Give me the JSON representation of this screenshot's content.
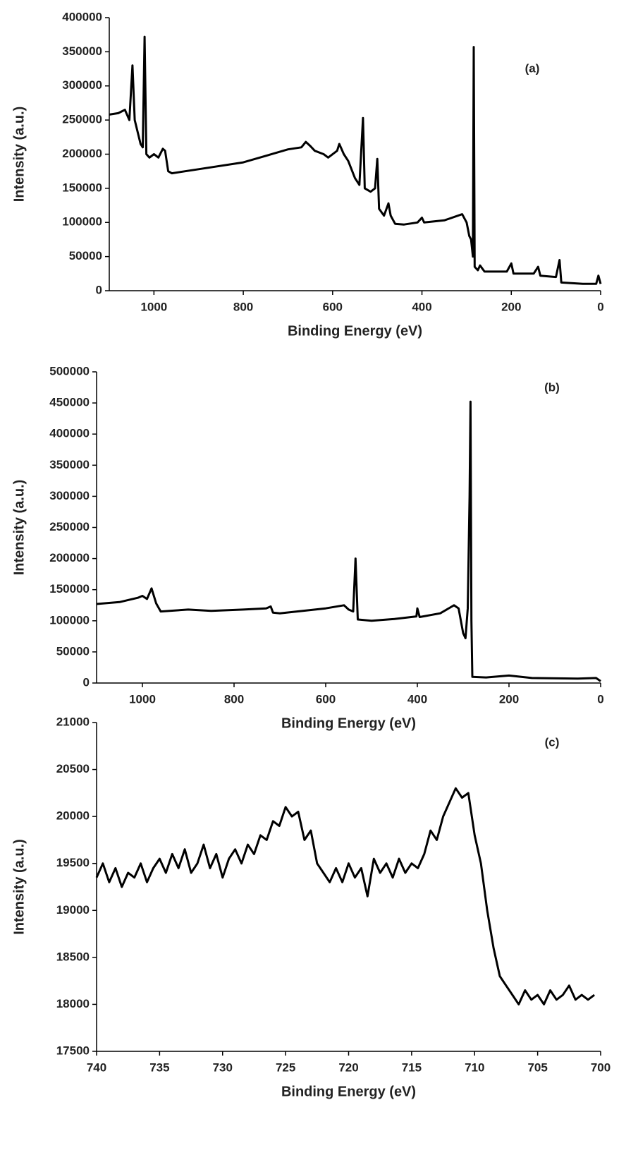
{
  "chart_data": [
    {
      "type": "line",
      "annotation": "(a)",
      "x_label": "Binding Energy (eV)",
      "y_label": "Intensity (a.u.)",
      "xlim": [
        1100,
        0
      ],
      "xticks": [
        1000,
        800,
        600,
        400,
        200,
        0
      ],
      "ylim": [
        0,
        400000
      ],
      "yticks": [
        0,
        50000,
        100000,
        150000,
        200000,
        250000,
        300000,
        350000,
        400000
      ],
      "grid": false,
      "series": [
        {
          "name": null,
          "color": "#000000",
          "x": [
            1100,
            1080,
            1065,
            1055,
            1048,
            1043,
            1030,
            1025,
            1021,
            1017,
            1010,
            1000,
            990,
            980,
            975,
            968,
            960,
            900,
            800,
            700,
            670,
            660,
            650,
            640,
            620,
            610,
            590,
            585,
            575,
            565,
            550,
            540,
            532,
            528,
            515,
            505,
            500,
            496,
            485,
            475,
            470,
            460,
            440,
            410,
            400,
            395,
            350,
            310,
            300,
            294,
            290,
            286,
            284,
            282,
            275,
            270,
            260,
            210,
            200,
            195,
            150,
            140,
            135,
            100,
            92,
            88,
            40,
            10,
            5,
            0
          ],
          "values": [
            258000,
            260000,
            265000,
            250000,
            330000,
            250000,
            215000,
            210000,
            372000,
            200000,
            195000,
            200000,
            195000,
            208000,
            205000,
            175000,
            172000,
            178000,
            188000,
            207000,
            210000,
            218000,
            212000,
            205000,
            200000,
            195000,
            205000,
            215000,
            200000,
            190000,
            165000,
            155000,
            253000,
            150000,
            145000,
            150000,
            193000,
            120000,
            110000,
            128000,
            110000,
            98000,
            97000,
            100000,
            107000,
            100000,
            103000,
            112000,
            100000,
            80000,
            75000,
            50000,
            357000,
            35000,
            30000,
            37000,
            28000,
            28000,
            40000,
            25000,
            25000,
            35000,
            22000,
            20000,
            45000,
            12000,
            10000,
            10000,
            22000,
            10000
          ]
        }
      ]
    },
    {
      "type": "line",
      "annotation": "(b)",
      "x_label": "Binding Energy (eV)",
      "y_label": "Intensity (a.u.)",
      "xlim": [
        1100,
        0
      ],
      "xticks": [
        1000,
        800,
        600,
        400,
        200,
        0
      ],
      "ylim": [
        0,
        500000
      ],
      "yticks": [
        0,
        50000,
        100000,
        150000,
        200000,
        250000,
        300000,
        350000,
        400000,
        450000,
        500000
      ],
      "grid": false,
      "series": [
        {
          "name": null,
          "color": "#000000",
          "x": [
            1100,
            1050,
            1010,
            1000,
            990,
            980,
            970,
            960,
            900,
            850,
            780,
            730,
            720,
            715,
            700,
            600,
            560,
            550,
            540,
            535,
            530,
            500,
            450,
            402,
            400,
            395,
            350,
            320,
            310,
            300,
            295,
            290,
            286,
            284,
            282,
            280,
            250,
            200,
            150,
            50,
            10,
            0
          ],
          "values": [
            127000,
            130000,
            137000,
            140000,
            135000,
            152000,
            128000,
            115000,
            118000,
            116000,
            118000,
            120000,
            123000,
            113000,
            112000,
            120000,
            125000,
            118000,
            115000,
            200000,
            102000,
            100000,
            103000,
            107000,
            120000,
            106000,
            112000,
            125000,
            120000,
            80000,
            72000,
            120000,
            300000,
            452000,
            100000,
            10000,
            9000,
            12000,
            8000,
            7000,
            8000,
            3000
          ]
        }
      ]
    },
    {
      "type": "line",
      "annotation": "(c)",
      "x_label": "Binding Energy (eV)",
      "y_label": "Intensity (a.u.)",
      "xlim": [
        740,
        700
      ],
      "xticks": [
        740,
        735,
        730,
        725,
        720,
        715,
        710,
        705,
        700
      ],
      "ylim": [
        17500,
        21000
      ],
      "yticks": [
        17500,
        18000,
        18500,
        19000,
        19500,
        20000,
        20500,
        21000
      ],
      "grid": false,
      "series": [
        {
          "name": null,
          "color": "#000000",
          "x": [
            740,
            739.5,
            739,
            738.5,
            738,
            737.5,
            737,
            736.5,
            736,
            735.5,
            735,
            734.5,
            734,
            733.5,
            733,
            732.5,
            732,
            731.5,
            731,
            730.5,
            730,
            729.5,
            729,
            728.5,
            728,
            727.5,
            727,
            726.5,
            726,
            725.5,
            725,
            724.5,
            724,
            723.5,
            723,
            722.5,
            722,
            721.5,
            721,
            720.5,
            720,
            719.5,
            719,
            718.5,
            718,
            717.5,
            717,
            716.5,
            716,
            715.5,
            715,
            714.5,
            714,
            713.5,
            713,
            712.5,
            712,
            711.5,
            711,
            710.5,
            710,
            709.5,
            709,
            708.5,
            708,
            707.5,
            707,
            706.5,
            706,
            705.5,
            705,
            704.5,
            704,
            703.5,
            703,
            702.5,
            702,
            701.5,
            701,
            700.5
          ],
          "values": [
            19350,
            19500,
            19300,
            19450,
            19250,
            19400,
            19350,
            19500,
            19300,
            19450,
            19550,
            19400,
            19600,
            19450,
            19650,
            19400,
            19500,
            19700,
            19450,
            19600,
            19350,
            19550,
            19650,
            19500,
            19700,
            19600,
            19800,
            19750,
            19950,
            19900,
            20100,
            20000,
            20050,
            19750,
            19850,
            19500,
            19400,
            19300,
            19450,
            19300,
            19500,
            19350,
            19450,
            19150,
            19550,
            19400,
            19500,
            19350,
            19550,
            19400,
            19500,
            19450,
            19600,
            19850,
            19750,
            20000,
            20150,
            20300,
            20200,
            20250,
            19800,
            19500,
            19000,
            18600,
            18300,
            18200,
            18100,
            18000,
            18150,
            18050,
            18100,
            18000,
            18150,
            18050,
            18100,
            18200,
            18050,
            18100,
            18050,
            18100
          ]
        }
      ]
    }
  ]
}
